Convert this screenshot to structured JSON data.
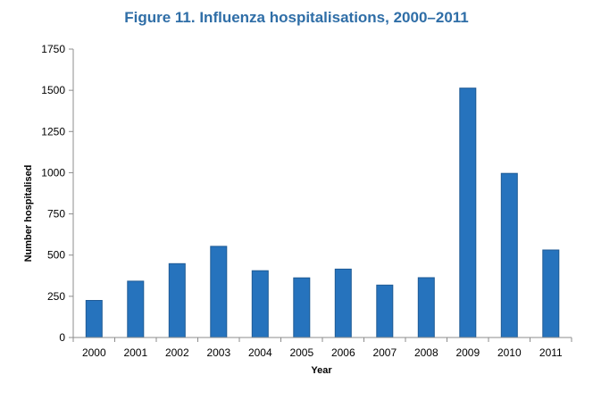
{
  "colors": {
    "title": "#2F6EA7",
    "bar": "#2673BD",
    "bar_edge": "#1E5A95",
    "axis": "#8C8C8C"
  },
  "chart_data": {
    "type": "bar",
    "title": "Figure 11. Influenza hospitalisations, 2000–2011",
    "xlabel": "Year",
    "ylabel": "Number hospitalised",
    "categories": [
      "2000",
      "2001",
      "2002",
      "2003",
      "2004",
      "2005",
      "2006",
      "2007",
      "2008",
      "2009",
      "2010",
      "2011"
    ],
    "values": [
      225,
      342,
      448,
      553,
      405,
      362,
      415,
      318,
      363,
      1513,
      996,
      531
    ],
    "ylim": [
      0,
      1750
    ],
    "yticks": [
      0,
      250,
      500,
      750,
      1000,
      1250,
      1500,
      1750
    ],
    "grid": false,
    "legend": "none"
  }
}
